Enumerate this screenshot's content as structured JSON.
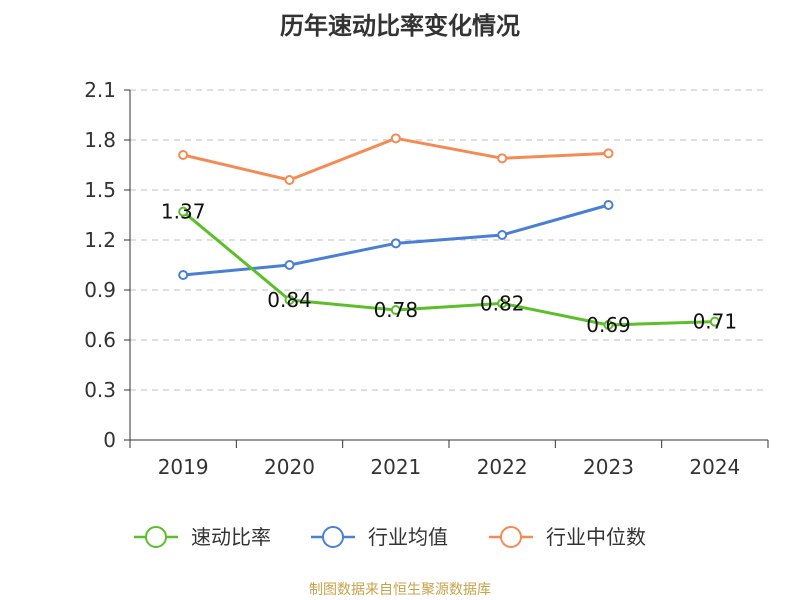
{
  "colors": {
    "series": [
      "#5cbf2a",
      "#4a7fd6",
      "#f58b54"
    ],
    "grid": "#cccccc",
    "axis": "#333333",
    "source": "#c8a24a"
  },
  "chart_data": {
    "type": "line",
    "title": "历年速动比率变化情况",
    "categories": [
      "2019",
      "2020",
      "2021",
      "2022",
      "2023",
      "2024"
    ],
    "ylim": [
      0,
      2.1
    ],
    "yticks": [
      0,
      0.3,
      0.6,
      0.9,
      1.2,
      1.5,
      1.8,
      2.1
    ],
    "ytick_labels": [
      "0",
      "0.3",
      "0.6",
      "0.9",
      "1.2",
      "1.5",
      "1.8",
      "2.1"
    ],
    "grid": true,
    "legend_position": "bottom",
    "series": [
      {
        "name": "速动比率",
        "values": [
          1.37,
          0.84,
          0.78,
          0.82,
          0.69,
          0.71
        ],
        "labels": [
          "1.37",
          "0.84",
          "0.78",
          "0.82",
          "0.69",
          "0.71"
        ]
      },
      {
        "name": "行业均值",
        "values": [
          0.99,
          1.05,
          1.18,
          1.23,
          1.41,
          null
        ]
      },
      {
        "name": "行业中位数",
        "values": [
          1.71,
          1.56,
          1.81,
          1.69,
          1.72,
          null
        ]
      }
    ]
  },
  "footer": {
    "source": "制图数据来自恒生聚源数据库"
  }
}
